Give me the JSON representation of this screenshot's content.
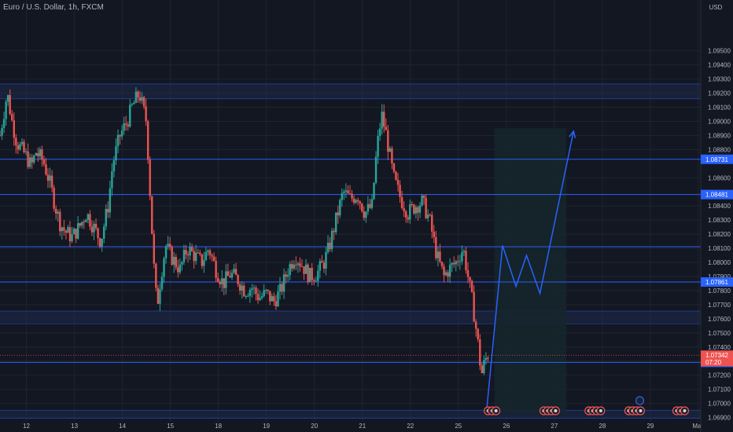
{
  "header": {
    "symbol": "Euro / U.S. Dollar, 1h, FXCM"
  },
  "colors": {
    "background": "#131722",
    "up": "#26a69a",
    "down": "#ef5350",
    "level_line": "#2962ff",
    "zone_fill": "#1e2a4a",
    "projection": "#2962ff",
    "projection_box": "#16262b",
    "price_tag": "#ef5350",
    "level_tag": "#2962ff",
    "grid": "#1f2430",
    "text": "#b2b5be"
  },
  "chart_data": {
    "type": "candlestick",
    "title": "Euro / U.S. Dollar, 1h, FXCM",
    "y_unit": "USD",
    "ylim": [
      1.0687,
      1.0986
    ],
    "y_ticks": [
      "1.09500",
      "1.09400",
      "1.09300",
      "1.09200",
      "1.09100",
      "1.09000",
      "1.08900",
      "1.08800",
      "1.08600",
      "1.08400",
      "1.08300",
      "1.08200",
      "1.08100",
      "1.08000",
      "1.07900",
      "1.07800",
      "1.07700",
      "1.07600",
      "1.07500",
      "1.07400",
      "1.07300",
      "1.07200",
      "1.07100",
      "1.07000",
      "1.06900"
    ],
    "x_ticks": [
      "12",
      "13",
      "14",
      "15",
      "18",
      "19",
      "20",
      "21",
      "22",
      "25",
      "26",
      "27",
      "28",
      "29",
      "May"
    ],
    "x_positions_days": [
      0,
      1,
      2,
      3,
      4,
      5,
      6,
      7,
      8,
      9,
      10,
      11,
      12,
      13,
      14
    ],
    "xlim_days": [
      -0.55,
      14.05
    ],
    "current_price": {
      "value": "1.07342",
      "countdown": "07:20"
    },
    "levels": [
      {
        "value": 1.08731,
        "label": "1.08731",
        "tagged": true
      },
      {
        "value": 1.08481,
        "label": "1.08481",
        "tagged": true
      },
      {
        "value": 1.08111,
        "label": "",
        "tagged": false
      },
      {
        "value": 1.07861,
        "label": "1.07861",
        "tagged": true
      },
      {
        "value": 1.07291,
        "label": "1.07291",
        "tagged": true
      }
    ],
    "zones": [
      {
        "low": 1.0916,
        "high": 1.09265
      },
      {
        "low": 1.07565,
        "high": 1.07655
      },
      {
        "low": 1.06895,
        "high": 1.0695
      }
    ],
    "close_path": [
      [
        -0.55,
        1.089
      ],
      [
        -0.4,
        1.092
      ],
      [
        -0.3,
        1.09
      ],
      [
        -0.2,
        1.0885
      ],
      [
        -0.1,
        1.088
      ],
      [
        0.0,
        1.0875
      ],
      [
        0.1,
        1.0868
      ],
      [
        0.2,
        1.0878
      ],
      [
        0.35,
        1.0872
      ],
      [
        0.5,
        1.0855
      ],
      [
        0.6,
        1.084
      ],
      [
        0.7,
        1.0828
      ],
      [
        0.8,
        1.0822
      ],
      [
        0.95,
        1.0818
      ],
      [
        1.1,
        1.0825
      ],
      [
        1.25,
        1.0835
      ],
      [
        1.4,
        1.0825
      ],
      [
        1.55,
        1.0815
      ],
      [
        1.7,
        1.084
      ],
      [
        1.8,
        1.087
      ],
      [
        1.95,
        1.089
      ],
      [
        2.1,
        1.09
      ],
      [
        2.2,
        1.091
      ],
      [
        2.35,
        1.092
      ],
      [
        2.5,
        1.09
      ],
      [
        2.65,
        1.08
      ],
      [
        2.72,
        1.0768
      ],
      [
        2.8,
        1.079
      ],
      [
        2.9,
        1.0812
      ],
      [
        3.0,
        1.0805
      ],
      [
        3.1,
        1.08
      ],
      [
        3.2,
        1.0795
      ],
      [
        3.35,
        1.081
      ],
      [
        3.5,
        1.0805
      ],
      [
        3.65,
        1.08
      ],
      [
        3.8,
        1.081
      ],
      [
        3.95,
        1.0795
      ],
      [
        4.1,
        1.0785
      ],
      [
        4.25,
        1.0792
      ],
      [
        4.4,
        1.0788
      ],
      [
        4.55,
        1.078
      ],
      [
        4.7,
        1.0782
      ],
      [
        4.85,
        1.0775
      ],
      [
        5.0,
        1.0778
      ],
      [
        5.15,
        1.0772
      ],
      [
        5.3,
        1.078
      ],
      [
        5.45,
        1.0795
      ],
      [
        5.6,
        1.0805
      ],
      [
        5.75,
        1.0798
      ],
      [
        5.9,
        1.079
      ],
      [
        6.05,
        1.0792
      ],
      [
        6.2,
        1.08
      ],
      [
        6.3,
        1.081
      ],
      [
        6.45,
        1.083
      ],
      [
        6.6,
        1.085
      ],
      [
        6.75,
        1.0845
      ],
      [
        6.9,
        1.0848
      ],
      [
        7.05,
        1.0835
      ],
      [
        7.2,
        1.084
      ],
      [
        7.3,
        1.088
      ],
      [
        7.4,
        1.0905
      ],
      [
        7.5,
        1.089
      ],
      [
        7.65,
        1.086
      ],
      [
        7.8,
        1.0845
      ],
      [
        7.95,
        1.0835
      ],
      [
        8.1,
        1.084
      ],
      [
        8.25,
        1.0843
      ],
      [
        8.4,
        1.083
      ],
      [
        8.55,
        1.0805
      ],
      [
        8.7,
        1.079
      ],
      [
        8.8,
        1.0795
      ],
      [
        8.95,
        1.08
      ],
      [
        9.1,
        1.081
      ],
      [
        9.2,
        1.079
      ],
      [
        9.3,
        1.077
      ],
      [
        9.4,
        1.0745
      ],
      [
        9.48,
        1.072
      ],
      [
        9.55,
        1.073
      ],
      [
        9.62,
        1.0735
      ]
    ],
    "projection_path": [
      [
        9.58,
        1.0692
      ],
      [
        9.92,
        1.0812
      ],
      [
        10.2,
        1.0783
      ],
      [
        10.42,
        1.0805
      ],
      [
        10.7,
        1.0778
      ],
      [
        11.4,
        1.0893
      ]
    ],
    "projection_box": {
      "x0": 9.75,
      "x1": 11.25,
      "y0": 1.0895,
      "y1": 1.0693
    },
    "events": [
      {
        "day": 9.62,
        "count": 3,
        "color": "#ef5350"
      },
      {
        "day": 10.78,
        "count": 4,
        "color": "#ef5350"
      },
      {
        "day": 11.72,
        "count": 4,
        "color": "#ef5350"
      },
      {
        "day": 12.55,
        "count": 4,
        "color": "#ef5350"
      },
      {
        "day": 13.55,
        "count": 3,
        "color": "#ef5350"
      }
    ]
  }
}
